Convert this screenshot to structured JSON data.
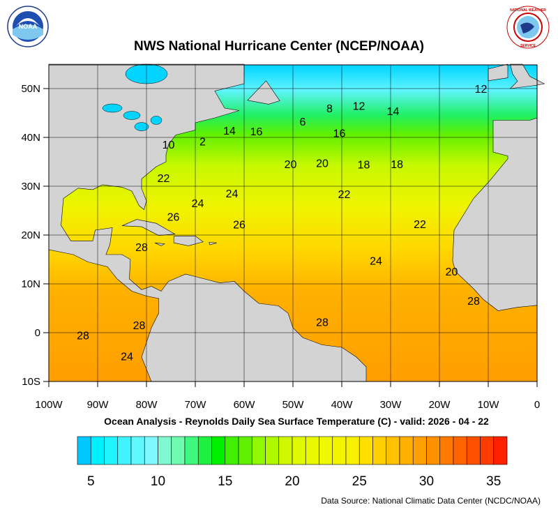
{
  "title": "NWS National Hurricane Center (NCEP/NOAA)",
  "subtitle": "Ocean Analysis - Reynolds Daily Sea Surface Temperature (C) - valid: 2026 - 04 - 22",
  "source": "Data Source: National Climatic Data Center (NCDC/NOAA)",
  "logos": {
    "left": "NOAA",
    "right": "NATIONAL WEATHER SERVICE"
  },
  "map": {
    "lon_range": [
      -100,
      0
    ],
    "lat_range": [
      -10,
      55
    ],
    "lon_ticks": [
      {
        "v": -100,
        "label": "100W"
      },
      {
        "v": -90,
        "label": "90W"
      },
      {
        "v": -80,
        "label": "80W"
      },
      {
        "v": -70,
        "label": "70W"
      },
      {
        "v": -60,
        "label": "60W"
      },
      {
        "v": -50,
        "label": "50W"
      },
      {
        "v": -40,
        "label": "40W"
      },
      {
        "v": -30,
        "label": "30W"
      },
      {
        "v": -20,
        "label": "20W"
      },
      {
        "v": -10,
        "label": "10W"
      },
      {
        "v": 0,
        "label": "0"
      }
    ],
    "lat_ticks": [
      {
        "v": 50,
        "label": "50N"
      },
      {
        "v": 40,
        "label": "40N"
      },
      {
        "v": 30,
        "label": "30N"
      },
      {
        "v": 20,
        "label": "20N"
      },
      {
        "v": 10,
        "label": "10N"
      },
      {
        "v": 0,
        "label": "0"
      },
      {
        "v": -10,
        "label": "10S"
      }
    ],
    "grid": true,
    "land_color": "#d3d3d3",
    "contour_labels": [
      {
        "t": "12",
        "lon": -11.5,
        "lat": 50
      },
      {
        "t": "12",
        "lon": -36.5,
        "lat": 46.5
      },
      {
        "t": "8",
        "lon": -42.5,
        "lat": 46
      },
      {
        "t": "6",
        "lon": -48,
        "lat": 43.3
      },
      {
        "t": "14",
        "lon": -29.5,
        "lat": 45.4
      },
      {
        "t": "14",
        "lon": -63,
        "lat": 41.4
      },
      {
        "t": "16",
        "lon": -57.5,
        "lat": 41.3
      },
      {
        "t": "16",
        "lon": -40.5,
        "lat": 40.9
      },
      {
        "t": "2",
        "lon": -68.5,
        "lat": 39.2
      },
      {
        "t": "10",
        "lon": -75.5,
        "lat": 38.6
      },
      {
        "t": "20",
        "lon": -50.5,
        "lat": 34.6
      },
      {
        "t": "20",
        "lon": -44,
        "lat": 34.8
      },
      {
        "t": "18",
        "lon": -35.5,
        "lat": 34.5
      },
      {
        "t": "18",
        "lon": -28.7,
        "lat": 34.6
      },
      {
        "t": "22",
        "lon": -76.5,
        "lat": 31.7
      },
      {
        "t": "24",
        "lon": -62.5,
        "lat": 28.6
      },
      {
        "t": "22",
        "lon": -39.5,
        "lat": 28.4
      },
      {
        "t": "24",
        "lon": -69.5,
        "lat": 26.6
      },
      {
        "t": "26",
        "lon": -74.5,
        "lat": 23.8
      },
      {
        "t": "26",
        "lon": -61,
        "lat": 22.2
      },
      {
        "t": "22",
        "lon": -24,
        "lat": 22.3
      },
      {
        "t": "28",
        "lon": -81,
        "lat": 17.6
      },
      {
        "t": "24",
        "lon": -33,
        "lat": 14.8
      },
      {
        "t": "20",
        "lon": -17.5,
        "lat": 12.6
      },
      {
        "t": "28",
        "lon": -13,
        "lat": 6.6
      },
      {
        "t": "28",
        "lon": -44,
        "lat": 2.2
      },
      {
        "t": "28",
        "lon": -81.5,
        "lat": 1.6
      },
      {
        "t": "28",
        "lon": -93,
        "lat": -0.5
      },
      {
        "t": "24",
        "lon": -84,
        "lat": -4.8
      }
    ]
  },
  "colorbar": {
    "min": 4,
    "max": 36,
    "tick_labels": [
      "5",
      "10",
      "15",
      "20",
      "25",
      "30",
      "35"
    ],
    "tick_values": [
      5,
      10,
      15,
      20,
      25,
      30,
      35
    ],
    "colors": [
      "#00c8ff",
      "#00f0ff",
      "#20f4ff",
      "#40f4ff",
      "#60f8ff",
      "#80f8ff",
      "#80f8d0",
      "#70fcb0",
      "#40f880",
      "#20f040",
      "#00f000",
      "#40f000",
      "#60f000",
      "#90f800",
      "#b0f800",
      "#d0f800",
      "#e0f800",
      "#e8f800",
      "#f0f800",
      "#f4f400",
      "#f8f000",
      "#ffe000",
      "#ffd000",
      "#ffc000",
      "#ffb000",
      "#ffa000",
      "#ff9000",
      "#ff7800",
      "#ff6400",
      "#ff5000",
      "#ff3c00",
      "#ff2000"
    ]
  }
}
